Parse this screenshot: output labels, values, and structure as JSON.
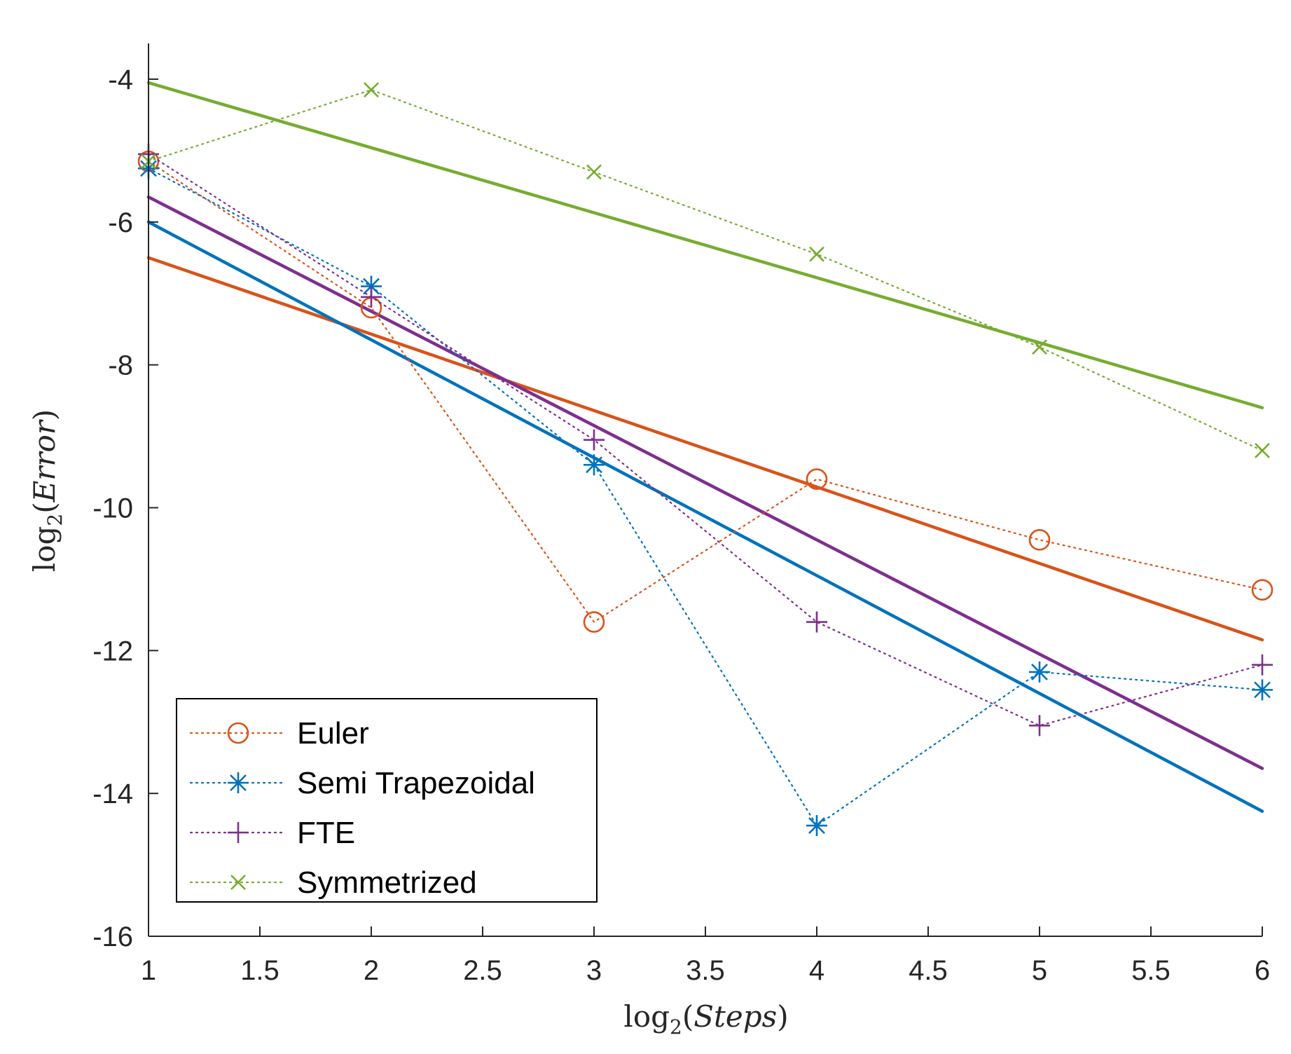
{
  "chart_data": {
    "type": "line",
    "title": "",
    "xlabel": {
      "prefix": "log",
      "sub": "2",
      "open": "(",
      "var": "Steps",
      "close": ")"
    },
    "ylabel": {
      "prefix": "log",
      "sub": "2",
      "open": "(",
      "var": "Error",
      "close": ")"
    },
    "xlim": [
      1,
      6
    ],
    "ylim": [
      -16,
      -3.5
    ],
    "xticks": [
      "1",
      "1.5",
      "2",
      "2.5",
      "3",
      "3.5",
      "4",
      "4.5",
      "5",
      "5.5",
      "6"
    ],
    "yticks": [
      "-4",
      "-6",
      "-8",
      "-10",
      "-12",
      "-14",
      "-16"
    ],
    "grid": false,
    "legend_position": "bottom-left",
    "x": [
      1,
      2,
      3,
      4,
      5,
      6
    ],
    "series": [
      {
        "name": "Euler",
        "color": "#d95319",
        "marker": "circle",
        "values": [
          -5.15,
          -7.2,
          -11.6,
          -9.6,
          -10.45,
          -11.15
        ],
        "fit": [
          -6.5,
          -11.85
        ]
      },
      {
        "name": "Semi Trapezoidal",
        "color": "#0072bd",
        "marker": "asterisk",
        "values": [
          -5.25,
          -6.9,
          -9.4,
          -14.45,
          -12.3,
          -12.55
        ],
        "fit": [
          -6.0,
          -14.25
        ]
      },
      {
        "name": "FTE",
        "color": "#7e2f8e",
        "marker": "plus",
        "values": [
          -5.05,
          -7.05,
          -9.05,
          -11.6,
          -13.05,
          -12.2
        ],
        "fit": [
          -5.65,
          -13.65
        ]
      },
      {
        "name": "Symmetrized",
        "color": "#77ac30",
        "marker": "cross",
        "values": [
          -5.15,
          -4.15,
          -5.3,
          -6.45,
          -7.75,
          -9.2
        ],
        "fit": [
          -4.05,
          -8.6
        ]
      }
    ]
  }
}
